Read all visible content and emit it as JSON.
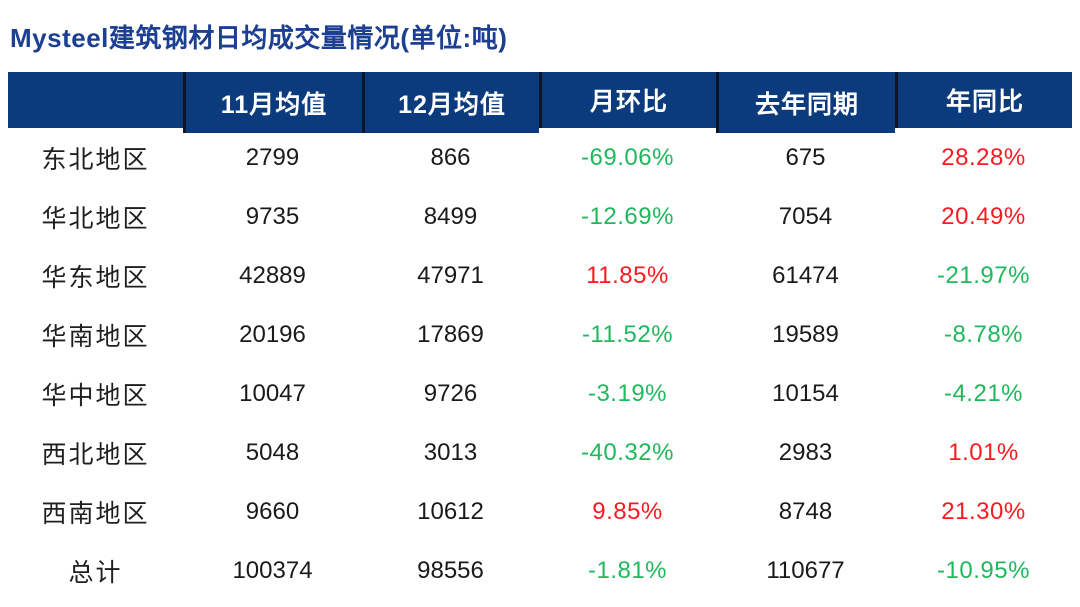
{
  "title": "Mysteel建筑钢材日均成交量情况(单位:吨)",
  "colors": {
    "header_background": "#0b3b7c",
    "header_text": "#ffffff",
    "title_text": "#1c3f92",
    "positive_red": "#fb1a20",
    "negative_green": "#1fb85c",
    "body_text": "#1a1a1a"
  },
  "chart_data": {
    "type": "table",
    "title": "Mysteel建筑钢材日均成交量情况(单位:吨)",
    "unit": "吨",
    "columns": [
      "",
      "11月均值",
      "12月均值",
      "月环比",
      "去年同期",
      "年同比"
    ],
    "rows": [
      {
        "region": "东北地区",
        "nov_avg": 2799,
        "dec_avg": 866,
        "mom": "-69.06%",
        "last_year": 675,
        "yoy": "28.28%"
      },
      {
        "region": "华北地区",
        "nov_avg": 9735,
        "dec_avg": 8499,
        "mom": "-12.69%",
        "last_year": 7054,
        "yoy": "20.49%"
      },
      {
        "region": "华东地区",
        "nov_avg": 42889,
        "dec_avg": 47971,
        "mom": "11.85%",
        "last_year": 61474,
        "yoy": "-21.97%"
      },
      {
        "region": "华南地区",
        "nov_avg": 20196,
        "dec_avg": 17869,
        "mom": "-11.52%",
        "last_year": 19589,
        "yoy": "-8.78%"
      },
      {
        "region": "华中地区",
        "nov_avg": 10047,
        "dec_avg": 9726,
        "mom": "-3.19%",
        "last_year": 10154,
        "yoy": "-4.21%"
      },
      {
        "region": "西北地区",
        "nov_avg": 5048,
        "dec_avg": 3013,
        "mom": "-40.32%",
        "last_year": 2983,
        "yoy": "1.01%"
      },
      {
        "region": "西南地区",
        "nov_avg": 9660,
        "dec_avg": 10612,
        "mom": "9.85%",
        "last_year": 8748,
        "yoy": "21.30%"
      },
      {
        "region": "总计",
        "nov_avg": 100374,
        "dec_avg": 98556,
        "mom": "-1.81%",
        "last_year": 110677,
        "yoy": "-10.95%"
      }
    ]
  }
}
